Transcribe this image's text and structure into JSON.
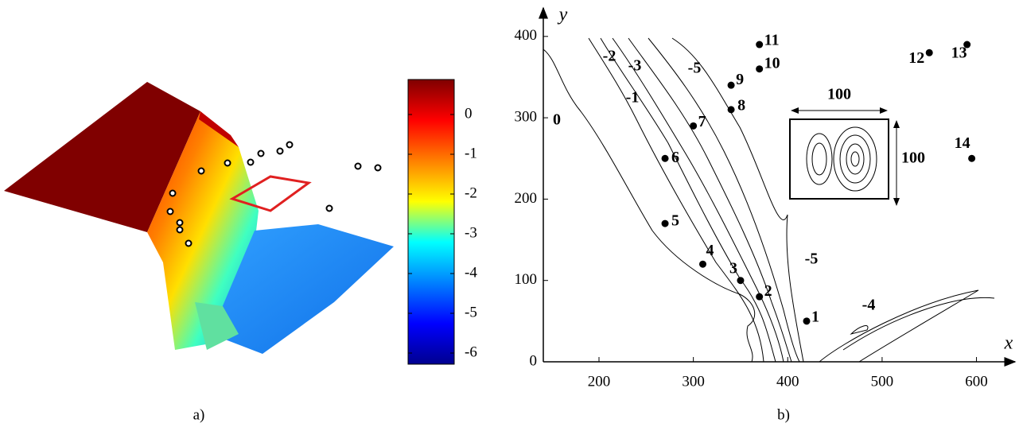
{
  "chart_data": [
    {
      "type": "surface",
      "caption": "a)",
      "colorbar": {
        "ylim": [
          -6.28,
          0.88
        ],
        "yticks": [
          0,
          -1,
          -2,
          -3,
          -4,
          -5,
          -6
        ],
        "colormap": [
          "#7f0000",
          "#ff0000",
          "#ff8000",
          "#ffff00",
          "#00ffff",
          "#0080ff",
          "#0000ff",
          "#00008f"
        ]
      }
    },
    {
      "type": "scatter",
      "caption": "b)",
      "x_label": "x",
      "y_label": "y",
      "xlim": [
        141,
        640
      ],
      "ylim": [
        0,
        435
      ],
      "xticks": [
        200,
        300,
        400,
        500,
        600
      ],
      "yticks": [
        0,
        100,
        200,
        300,
        400
      ],
      "points": {
        "labels": [
          "1",
          "2",
          "3",
          "4",
          "5",
          "6",
          "7",
          "8",
          "9",
          "10",
          "11",
          "12",
          "13",
          "14"
        ],
        "x": [
          420,
          370,
          350,
          310,
          270,
          270,
          300,
          340,
          340,
          370,
          370,
          550,
          590,
          595
        ],
        "y": [
          50,
          80,
          100,
          120,
          170,
          250,
          290,
          310,
          340,
          360,
          390,
          380,
          390,
          250
        ]
      },
      "annotations": [
        "0",
        "-2",
        "-3",
        "-5",
        "-1",
        "-5",
        "-4"
      ],
      "inset": {
        "width_label": "100",
        "height_label": "100"
      }
    }
  ]
}
